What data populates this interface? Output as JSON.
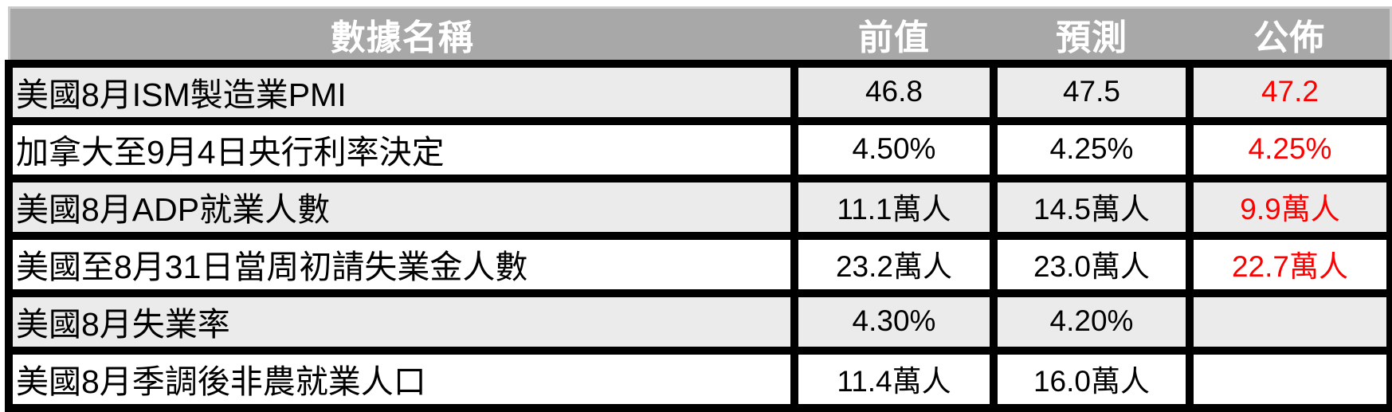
{
  "colors": {
    "header_bg": "#a8a8a8",
    "header_text": "#ffffff",
    "row_alt_bg": "#ebebeb",
    "row_bg": "#ffffff",
    "grid_border": "#000000",
    "actual_highlight_red": "#fe0000",
    "body_text": "#000000"
  },
  "table": {
    "headers": {
      "name": "數據名稱",
      "previous": "前值",
      "forecast": "預測",
      "actual": "公佈"
    },
    "rows": [
      {
        "name": "美國8月ISM製造業PMI",
        "previous": "46.8",
        "forecast": "47.5",
        "actual": "47.2"
      },
      {
        "name": "加拿大至9月4日央行利率決定",
        "previous": "4.50%",
        "forecast": "4.25%",
        "actual": "4.25%"
      },
      {
        "name": "美國8月ADP就業人數",
        "previous": "11.1萬人",
        "forecast": "14.5萬人",
        "actual": "9.9萬人"
      },
      {
        "name": "美國至8月31日當周初請失業金人數",
        "previous": "23.2萬人",
        "forecast": "23.0萬人",
        "actual": "22.7萬人"
      },
      {
        "name": "美國8月失業率",
        "previous": "4.30%",
        "forecast": "4.20%",
        "actual": ""
      },
      {
        "name": "美國8月季調後非農就業人口",
        "previous": "11.4萬人",
        "forecast": "16.0萬人",
        "actual": ""
      }
    ]
  },
  "chart_data": {
    "type": "table",
    "title": "",
    "columns": [
      "數據名稱",
      "前值",
      "預測",
      "公佈"
    ],
    "rows": [
      [
        "美國8月ISM製造業PMI",
        "46.8",
        "47.5",
        "47.2"
      ],
      [
        "加拿大至9月4日央行利率決定",
        "4.50%",
        "4.25%",
        "4.25%"
      ],
      [
        "美國8月ADP就業人數",
        "11.1萬人",
        "14.5萬人",
        "9.9萬人"
      ],
      [
        "美國至8月31日當周初請失業金人數",
        "23.2萬人",
        "23.0萬人",
        "22.7萬人"
      ],
      [
        "美國8月失業率",
        "4.30%",
        "4.20%",
        ""
      ],
      [
        "美國8月季調後非農就業人口",
        "11.4萬人",
        "16.0萬人",
        ""
      ]
    ],
    "notes": "公佈 (actual/released) values shown in red; empty 公佈 cells mean not yet released",
    "row_striping": [
      "#ebebeb",
      "#ffffff"
    ]
  }
}
